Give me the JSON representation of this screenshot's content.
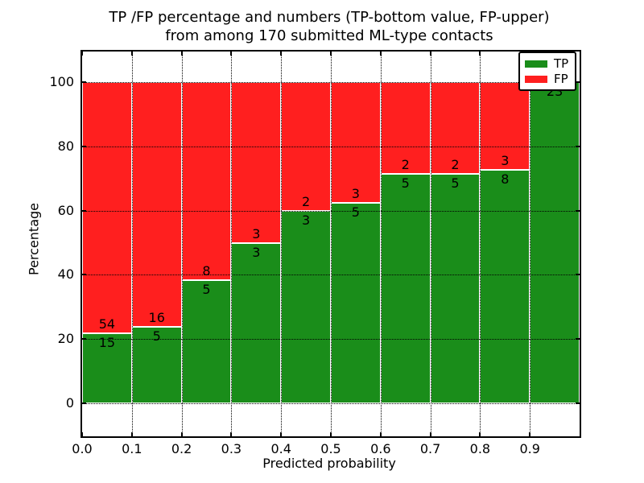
{
  "title": {
    "line1": "TP /FP percentage and numbers (TP-bottom value, FP-upper)",
    "line2": "from among 170 submitted ML-type contacts"
  },
  "axes": {
    "xlabel": "Predicted probability",
    "ylabel": "Percentage",
    "x_tick_labels": [
      "0.0",
      "0.1",
      "0.2",
      "0.3",
      "0.4",
      "0.5",
      "0.6",
      "0.7",
      "0.8",
      "0.9"
    ],
    "y_tick_labels": [
      "0",
      "20",
      "40",
      "60",
      "80",
      "100"
    ]
  },
  "legend": {
    "position": "upper right",
    "entries": [
      {
        "label": "TP",
        "color": "#1a8d1a"
      },
      {
        "label": "FP",
        "color": "#ff1f1f"
      }
    ]
  },
  "colors": {
    "tp": "#1a8d1a",
    "fp": "#ff1f1f",
    "grid": "#000000",
    "frame": "#000000",
    "background": "#ffffff",
    "text": "#000000"
  },
  "chart_data": {
    "type": "bar",
    "stacked": true,
    "normalized_to_percent": true,
    "title": "TP /FP percentage and numbers (TP-bottom value, FP-upper) from among 170 submitted ML-type contacts",
    "xlabel": "Predicted probability",
    "ylabel": "Percentage",
    "total_contacts": 170,
    "categories": [
      "0.0-0.1",
      "0.1-0.2",
      "0.2-0.3",
      "0.3-0.4",
      "0.4-0.5",
      "0.5-0.6",
      "0.6-0.7",
      "0.7-0.8",
      "0.8-0.9",
      "0.9-1.0"
    ],
    "bin_start": [
      0.0,
      0.1,
      0.2,
      0.3,
      0.4,
      0.5,
      0.6,
      0.7,
      0.8,
      0.9
    ],
    "bin_width": 0.1,
    "series": [
      {
        "name": "TP",
        "values": [
          15,
          5,
          5,
          3,
          3,
          5,
          5,
          5,
          8,
          23
        ]
      },
      {
        "name": "FP",
        "values": [
          54,
          16,
          8,
          3,
          2,
          3,
          2,
          2,
          3,
          0
        ]
      }
    ],
    "tp_percent": [
      21.7,
      23.8,
      38.5,
      50.0,
      60.0,
      62.5,
      71.4,
      71.4,
      72.7,
      100.0
    ],
    "xlim": [
      0.0,
      1.0
    ],
    "ylim": [
      -10.3,
      109.6
    ],
    "grid": true,
    "grid_style": "dotted",
    "legend_position": "upper right"
  }
}
